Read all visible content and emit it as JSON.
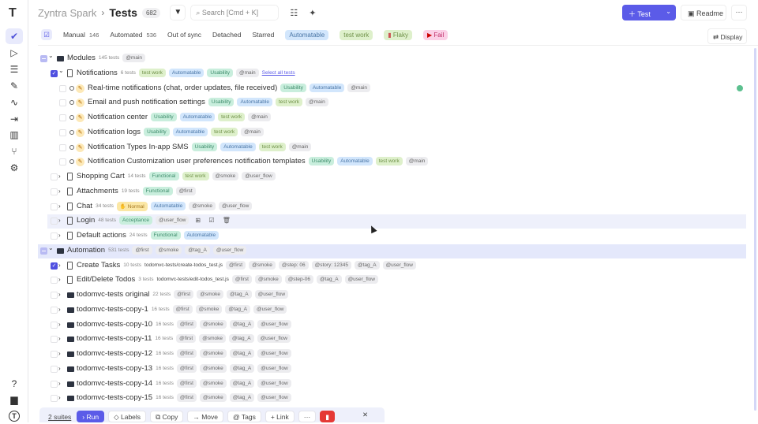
{
  "sidebar": {
    "items": [
      {
        "name": "tests",
        "icon": "✔",
        "active": true
      },
      {
        "name": "runs",
        "icon": "▷"
      },
      {
        "name": "plans",
        "icon": "☰"
      },
      {
        "name": "steps",
        "icon": "✎"
      },
      {
        "name": "pulse",
        "icon": "∿"
      },
      {
        "name": "imports",
        "icon": "⇥"
      },
      {
        "name": "analytics",
        "icon": "▥"
      },
      {
        "name": "branches",
        "icon": "⑂"
      },
      {
        "name": "settings",
        "icon": "⚙"
      }
    ],
    "bottom": [
      {
        "name": "help",
        "icon": "?"
      },
      {
        "name": "projects",
        "icon": "▆"
      },
      {
        "name": "profile",
        "icon": "T"
      }
    ]
  },
  "header": {
    "project": "Zyntra Spark",
    "separator": "›",
    "title": "Tests",
    "count": "682",
    "search_placeholder": "Search [Cmd + K]",
    "new_test": "Test",
    "readme": "Readme",
    "more": "···"
  },
  "filters": {
    "manual": "Manual",
    "manual_count": "146",
    "automated": "Automated",
    "automated_count": "536",
    "out_of_sync": "Out of sync",
    "detached": "Detached",
    "starred": "Starred",
    "automatable": "Automatable",
    "test_work": "test work",
    "flaky": "Flaky",
    "fail": "Fail",
    "display": "Display"
  },
  "colors": {
    "accent": "#5b5be8",
    "danger": "#e53935"
  },
  "rows": [
    {
      "kind": "folder",
      "level": 0,
      "cb": "part",
      "open": true,
      "label": "Modules",
      "count": "145 tests",
      "tags": [
        [
          "@main",
          "at"
        ]
      ]
    },
    {
      "kind": "suite",
      "level": 1,
      "cb": "on",
      "open": true,
      "label": "Notifications",
      "count": "6 tests",
      "tags": [
        [
          "test work",
          "work"
        ],
        [
          "Automatable",
          "automatable"
        ],
        [
          "Usability",
          "usability"
        ],
        [
          "@main",
          "at"
        ]
      ],
      "extra": "Select all tests"
    },
    {
      "kind": "test",
      "label": "Real-time notifications (chat, order updates, file received)",
      "tags": [
        [
          "Usability",
          "usability"
        ],
        [
          "Automatable",
          "automatable"
        ],
        [
          "@main",
          "at"
        ]
      ],
      "done": true
    },
    {
      "kind": "test",
      "label": "Email and push notification settings",
      "tags": [
        [
          "Usability",
          "usability"
        ],
        [
          "Automatable",
          "automatable"
        ],
        [
          "test work",
          "work"
        ],
        [
          "@main",
          "at"
        ]
      ]
    },
    {
      "kind": "test",
      "label": "Notification center",
      "tags": [
        [
          "Usability",
          "usability"
        ],
        [
          "Automatable",
          "automatable"
        ],
        [
          "test work",
          "work"
        ],
        [
          "@main",
          "at"
        ]
      ]
    },
    {
      "kind": "test",
      "label": "Notification logs",
      "tags": [
        [
          "Usability",
          "usability"
        ],
        [
          "Automatable",
          "automatable"
        ],
        [
          "test work",
          "work"
        ],
        [
          "@main",
          "at"
        ]
      ]
    },
    {
      "kind": "test",
      "label": "Notification Types In-app SMS",
      "tags": [
        [
          "Usability",
          "usability"
        ],
        [
          "Automatable",
          "automatable"
        ],
        [
          "test work",
          "work"
        ],
        [
          "@main",
          "at"
        ]
      ]
    },
    {
      "kind": "test",
      "label": "Notification Customization user preferences notification templates",
      "tags": [
        [
          "Usability",
          "usability"
        ],
        [
          "Automatable",
          "automatable"
        ],
        [
          "test work",
          "work"
        ],
        [
          "@main",
          "at"
        ]
      ]
    },
    {
      "kind": "suite",
      "level": 1,
      "label": "Shopping Cart",
      "count": "14 tests",
      "tags": [
        [
          "Functional",
          "functional"
        ],
        [
          "test work",
          "work"
        ],
        [
          "@smoke",
          "at"
        ],
        [
          "@user_flow",
          "at"
        ]
      ]
    },
    {
      "kind": "suite",
      "level": 1,
      "label": "Attachments",
      "count": "19 tests",
      "tags": [
        [
          "Functional",
          "functional"
        ],
        [
          "@first",
          "at"
        ]
      ]
    },
    {
      "kind": "suite",
      "level": 1,
      "label": "Chat",
      "count": "34 tests",
      "tags": [
        [
          "✋ Normal",
          "normal"
        ],
        [
          "Automatable",
          "automatable"
        ],
        [
          "@smoke",
          "at"
        ],
        [
          "@user_flow",
          "at"
        ]
      ]
    },
    {
      "kind": "suite",
      "level": 1,
      "label": "Login",
      "count": "48 tests",
      "hover": true,
      "tags": [
        [
          "Acceptance",
          "acceptance"
        ],
        [
          "@user_flow",
          "at"
        ]
      ],
      "actions": "⊞ ☑ 🗑"
    },
    {
      "kind": "suite",
      "level": 1,
      "label": "Default actions",
      "count": "24 tests",
      "tags": [
        [
          "Functional",
          "functional"
        ],
        [
          "Automatable",
          "automatable"
        ]
      ]
    },
    {
      "kind": "folder",
      "level": 0,
      "cb": "part",
      "open": true,
      "selected": true,
      "label": "Automation",
      "count": "531 tests",
      "tags": [
        [
          "@first",
          "at"
        ],
        [
          "@smoke",
          "at"
        ],
        [
          "@tag_A",
          "at"
        ],
        [
          "@user_flow",
          "at"
        ]
      ]
    },
    {
      "kind": "suite",
      "level": 1,
      "cb": "on",
      "label": "Create Tasks",
      "count": "10 tests",
      "path": "todomvc-tests/create-todos_test.js",
      "tags": [
        [
          "@first",
          "at"
        ],
        [
          "@smoke",
          "at"
        ],
        [
          "@step: 06",
          "at"
        ],
        [
          "@story: 12345",
          "at"
        ],
        [
          "@tag_A",
          "at"
        ],
        [
          "@user_flow",
          "at"
        ]
      ]
    },
    {
      "kind": "suite",
      "level": 1,
      "label": "Edit/Delete Todos",
      "count": "3 tests",
      "path": "todomvc-tests/edit-todos_test.js",
      "tags": [
        [
          "@first",
          "at"
        ],
        [
          "@smoke",
          "at"
        ],
        [
          "@step-06",
          "at"
        ],
        [
          "@tag_A",
          "at"
        ],
        [
          "@user_flow",
          "at"
        ]
      ]
    },
    {
      "kind": "folder",
      "level": 1,
      "label": "todomvc-tests original",
      "count": "22 tests",
      "tags": [
        [
          "@first",
          "at"
        ],
        [
          "@smoke",
          "at"
        ],
        [
          "@tag_A",
          "at"
        ],
        [
          "@user_flow",
          "at"
        ]
      ]
    },
    {
      "kind": "folder",
      "level": 1,
      "label": "todomvc-tests-copy-1",
      "count": "16 tests",
      "tags": [
        [
          "@first",
          "at"
        ],
        [
          "@smoke",
          "at"
        ],
        [
          "@tag_A",
          "at"
        ],
        [
          "@user_flow",
          "at"
        ]
      ]
    },
    {
      "kind": "folder",
      "level": 1,
      "label": "todomvc-tests-copy-10",
      "count": "16 tests",
      "tags": [
        [
          "@first",
          "at"
        ],
        [
          "@smoke",
          "at"
        ],
        [
          "@tag_A",
          "at"
        ],
        [
          "@user_flow",
          "at"
        ]
      ]
    },
    {
      "kind": "folder",
      "level": 1,
      "label": "todomvc-tests-copy-11",
      "count": "16 tests",
      "tags": [
        [
          "@first",
          "at"
        ],
        [
          "@smoke",
          "at"
        ],
        [
          "@tag_A",
          "at"
        ],
        [
          "@user_flow",
          "at"
        ]
      ]
    },
    {
      "kind": "folder",
      "level": 1,
      "label": "todomvc-tests-copy-12",
      "count": "16 tests",
      "tags": [
        [
          "@first",
          "at"
        ],
        [
          "@smoke",
          "at"
        ],
        [
          "@tag_A",
          "at"
        ],
        [
          "@user_flow",
          "at"
        ]
      ]
    },
    {
      "kind": "folder",
      "level": 1,
      "label": "todomvc-tests-copy-13",
      "count": "16 tests",
      "tags": [
        [
          "@first",
          "at"
        ],
        [
          "@smoke",
          "at"
        ],
        [
          "@tag_A",
          "at"
        ],
        [
          "@user_flow",
          "at"
        ]
      ]
    },
    {
      "kind": "folder",
      "level": 1,
      "label": "todomvc-tests-copy-14",
      "count": "16 tests",
      "tags": [
        [
          "@first",
          "at"
        ],
        [
          "@smoke",
          "at"
        ],
        [
          "@tag_A",
          "at"
        ],
        [
          "@user_flow",
          "at"
        ]
      ]
    },
    {
      "kind": "folder",
      "level": 1,
      "label": "todomvc-tests-copy-15",
      "count": "16 tests",
      "tags": [
        [
          "@first",
          "at"
        ],
        [
          "@smoke",
          "at"
        ],
        [
          "@tag_A",
          "at"
        ],
        [
          "@user_flow",
          "at"
        ]
      ]
    }
  ],
  "bulk": {
    "selection": "2 suites",
    "run": "Run",
    "labels": "Labels",
    "copy": "Copy",
    "move": "Move",
    "tags": "Tags",
    "link": "Link",
    "more": "···",
    "close": "✕"
  }
}
